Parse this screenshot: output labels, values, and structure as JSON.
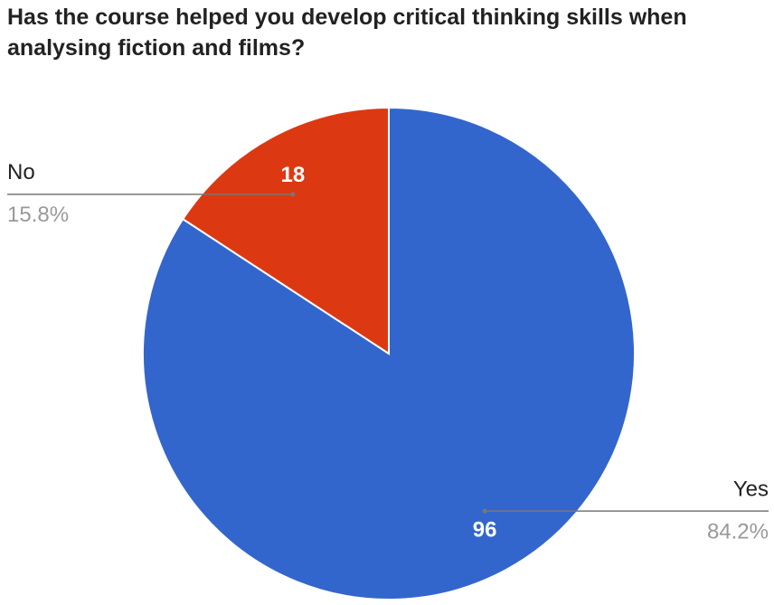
{
  "chart_data": {
    "type": "pie",
    "title": "Has the course helped you develop critical thinking skills when analysing fiction and films?",
    "categories": [
      "Yes",
      "No"
    ],
    "values": [
      96,
      18
    ],
    "percent_labels": [
      "84.2%",
      "15.8%"
    ],
    "colors": [
      "#3366cc",
      "#dc3912"
    ]
  }
}
